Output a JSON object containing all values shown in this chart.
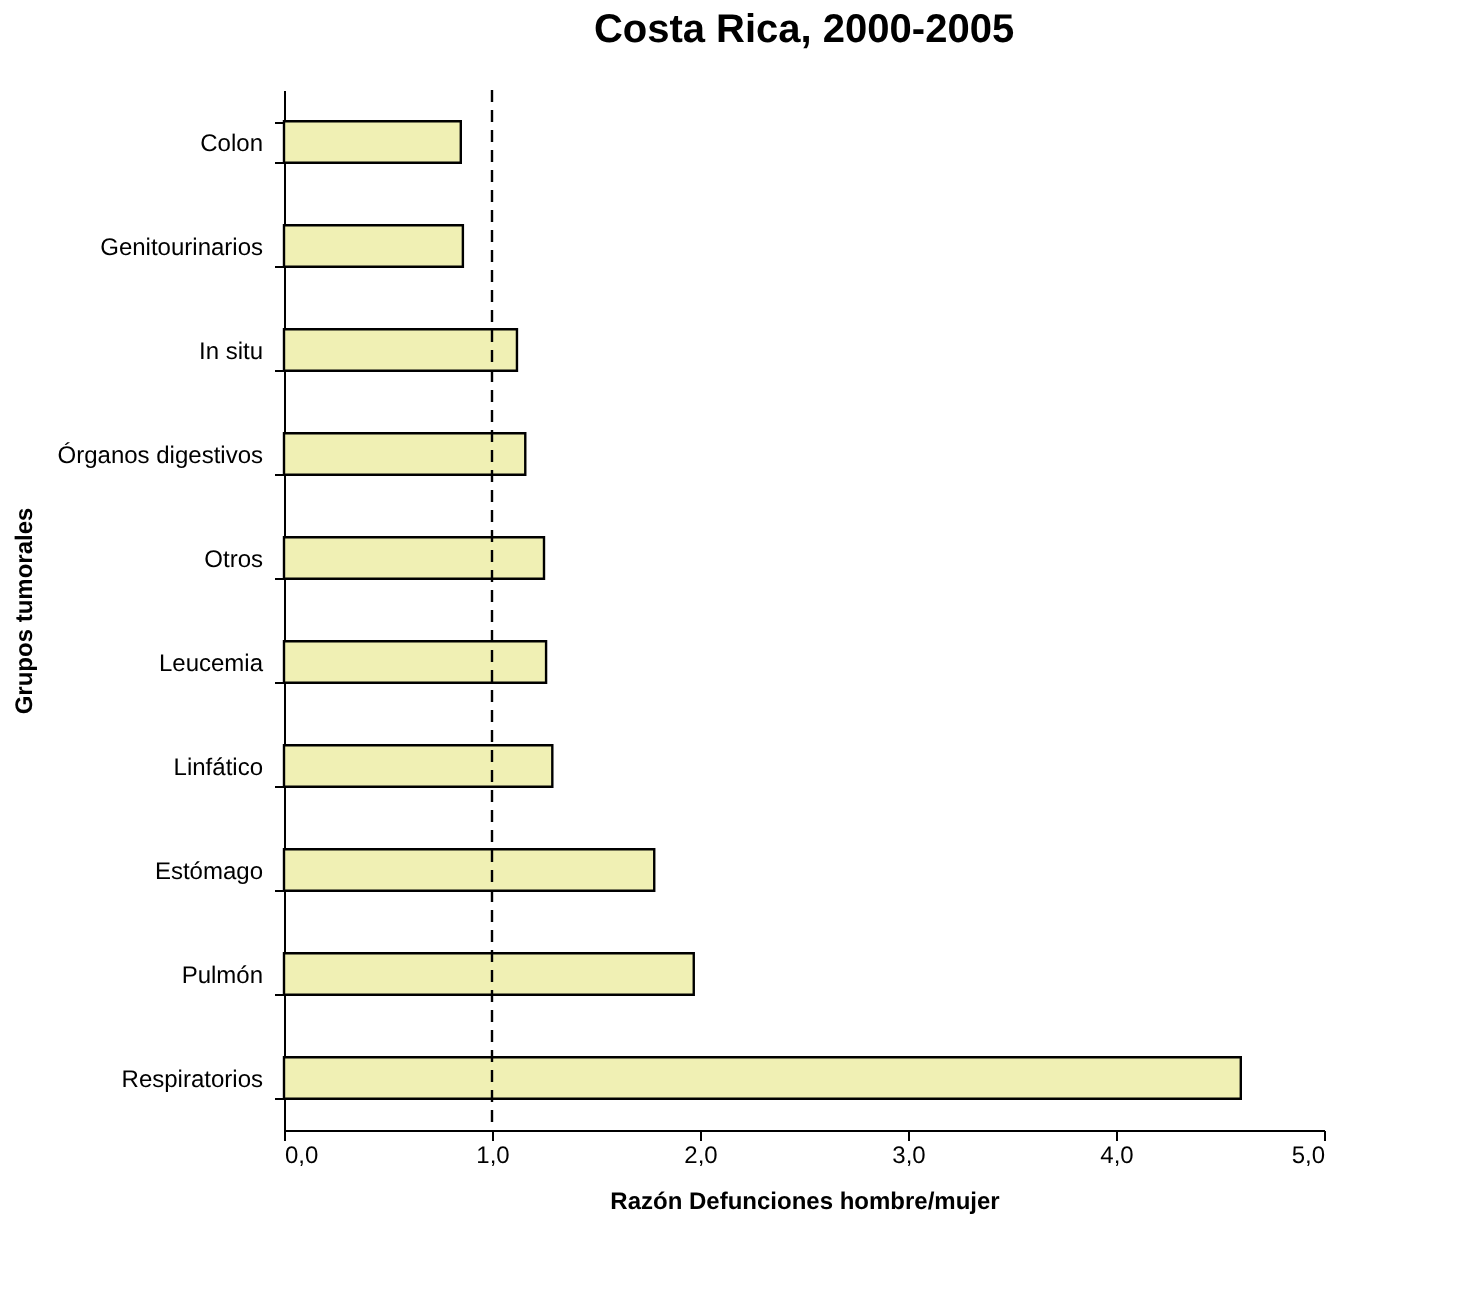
{
  "chart_data": {
    "type": "bar",
    "orientation": "horizontal",
    "title": "Costa Rica, 2000-2005",
    "xlabel": "Razón Defunciones hombre/mujer",
    "ylabel": "Grupos tumorales",
    "categories": [
      "Colon",
      "Genitourinarios",
      "In situ",
      "Órganos digestivos",
      "Otros",
      "Leucemia",
      "Linfático",
      "Estómago",
      "Pulmón",
      "Respiratorios"
    ],
    "values": [
      0.85,
      0.86,
      1.12,
      1.16,
      1.25,
      1.26,
      1.29,
      1.78,
      1.97,
      4.6
    ],
    "color": "#f0f0b4",
    "xlim": [
      0,
      5
    ],
    "xticks": [
      {
        "value": 0,
        "label": "0,0"
      },
      {
        "value": 1,
        "label": "1,0"
      },
      {
        "value": 2,
        "label": "2,0"
      },
      {
        "value": 3,
        "label": "3,0"
      },
      {
        "value": 4,
        "label": "4,0"
      },
      {
        "value": 5,
        "label": "5,0"
      }
    ],
    "ref_lines": [
      {
        "axis": "x",
        "value": 1,
        "label": null,
        "color": "#000000",
        "line_style": "dashed"
      }
    ],
    "grid": false
  }
}
